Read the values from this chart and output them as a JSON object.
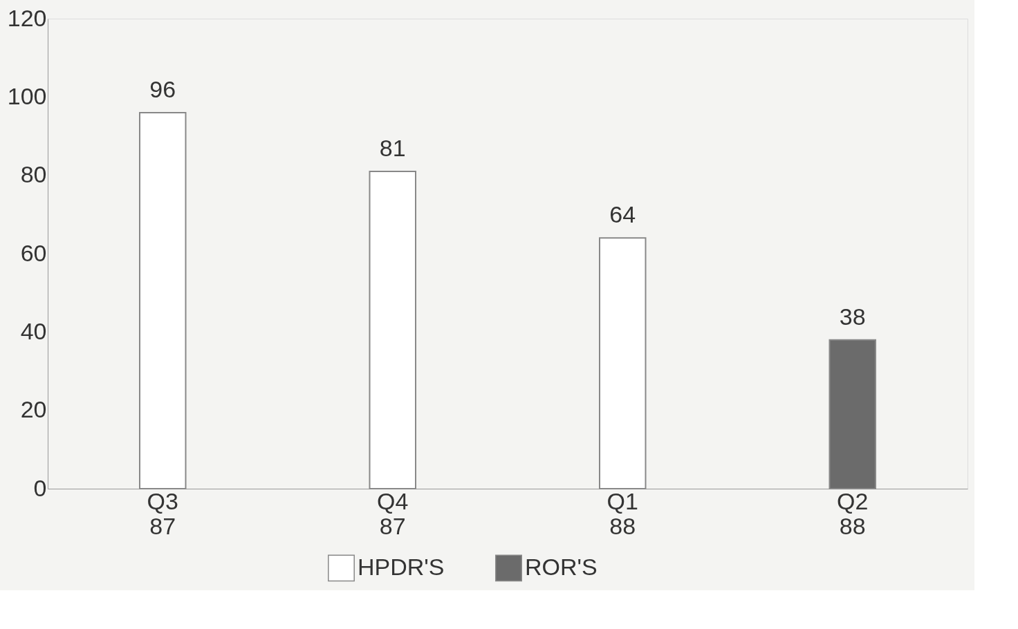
{
  "chart_data": {
    "type": "bar",
    "categories": [
      "Q3 87",
      "Q4 87",
      "Q1 88",
      "Q2 88"
    ],
    "series": [
      {
        "name": "HPDR'S",
        "color": "#ffffff",
        "values": [
          96,
          81,
          64,
          null
        ]
      },
      {
        "name": "ROR'S",
        "color": "#6b6b6b",
        "values": [
          null,
          null,
          null,
          38
        ]
      }
    ],
    "ylim": [
      0,
      120
    ],
    "yticks": [
      0,
      20,
      40,
      60,
      80,
      100,
      120
    ],
    "grid": false,
    "legend": "bottom",
    "data_labels": true
  }
}
